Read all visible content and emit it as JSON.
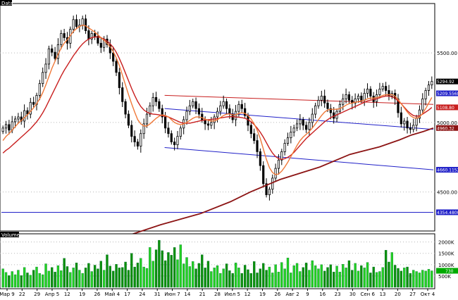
{
  "chart_data": {
    "type": "candlestick",
    "title": "Data",
    "price_panel": {
      "ylim": [
        4230,
        5830
      ],
      "ytick_labels": [
        {
          "value": 5500,
          "label": "5500.00"
        },
        {
          "value": 5000,
          "label": "5000.00"
        },
        {
          "value": 4500,
          "label": "4500.00"
        }
      ],
      "price_labels": [
        {
          "value": 5294.92,
          "label": "5294.92",
          "color": "#ffffff",
          "bg": "#000000"
        },
        {
          "value": 5209.5568,
          "label": "5209.5568",
          "color": "#ffffff",
          "bg": "#2020c8"
        },
        {
          "value": 5108.8,
          "label": "5108.80",
          "color": "#ffffff",
          "bg": "#c81e1e"
        },
        {
          "value": 4960.32,
          "label": "4960.32",
          "color": "#ffffff",
          "bg": "#8c1414"
        },
        {
          "value": 4660.1152,
          "label": "4660.1152",
          "color": "#ffffff",
          "bg": "#2020c8"
        },
        {
          "value": 4354.48,
          "label": "4354.4800",
          "color": "#ffffff",
          "bg": "#2020c8"
        }
      ],
      "closes": [
        4960,
        4985,
        4945,
        5005,
        5025,
        5040,
        5010,
        5085,
        5060,
        5145,
        5130,
        5195,
        5280,
        5360,
        5420,
        5530,
        5505,
        5460,
        5560,
        5640,
        5610,
        5570,
        5670,
        5740,
        5690,
        5700,
        5745,
        5660,
        5600,
        5640,
        5620,
        5570,
        5540,
        5600,
        5560,
        5500,
        5440,
        5360,
        5250,
        5150,
        5060,
        4980,
        4900,
        4860,
        4830,
        4920,
        4990,
        5060,
        5120,
        5180,
        5150,
        5100,
        5040,
        4960,
        4920,
        4860,
        4840,
        4900,
        4960,
        5020,
        5080,
        5120,
        5150,
        5100,
        5060,
        5020,
        4990,
        4980,
        5000,
        5040,
        5080,
        5120,
        5150,
        5100,
        5060,
        5020,
        5080,
        5130,
        5100,
        5050,
        4980,
        4920,
        4870,
        4790,
        4690,
        4560,
        4480,
        4520,
        4600,
        4670,
        4730,
        4790,
        4850,
        4890,
        4930,
        4960,
        4990,
        5020,
        4980,
        4950,
        5000,
        5060,
        5120,
        5160,
        5190,
        5140,
        5100,
        5070,
        5030,
        5080,
        5130,
        5170,
        5200,
        5160,
        5140,
        5170,
        5190,
        5160,
        5210,
        5240,
        5190,
        5150,
        5200,
        5240,
        5260,
        5230,
        5190,
        5210,
        5170,
        5070,
        4990,
        5010,
        4960,
        4950,
        4980,
        5030,
        5090,
        5170,
        5230,
        5270,
        5295
      ],
      "sma_fast": {
        "color": "#f07838",
        "values": [
          4870,
          4900,
          4920,
          4945,
          4970,
          4995,
          5015,
          5035,
          5055,
          5080,
          5105,
          5135,
          5170,
          5215,
          5270,
          5330,
          5390,
          5440,
          5490,
          5535,
          5570,
          5595,
          5625,
          5655,
          5675,
          5690,
          5700,
          5695,
          5680,
          5665,
          5650,
          5630,
          5610,
          5590,
          5570,
          5545,
          5510,
          5465,
          5410,
          5340,
          5270,
          5200,
          5135,
          5075,
          5020,
          4990,
          4975,
          4975,
          4990,
          5010,
          5030,
          5045,
          5055,
          5050,
          5040,
          5020,
          5000,
          4990,
          4985,
          4990,
          5000,
          5015,
          5030,
          5040,
          5040,
          5035,
          5025,
          5015,
          5010,
          5012,
          5020,
          5035,
          5050,
          5060,
          5062,
          5055,
          5055,
          5065,
          5070,
          5065,
          5050,
          5025,
          4990,
          4945,
          4885,
          4810,
          4735,
          4675,
          4640,
          4625,
          4630,
          4650,
          4680,
          4715,
          4755,
          4795,
          4835,
          4870,
          4895,
          4915,
          4935,
          4960,
          4990,
          5020,
          5050,
          5075,
          5090,
          5095,
          5095,
          5095,
          5100,
          5110,
          5125,
          5135,
          5140,
          5145,
          5150,
          5155,
          5160,
          5170,
          5175,
          5175,
          5180,
          5185,
          5195,
          5200,
          5200,
          5200,
          5190,
          5165,
          5135,
          5105,
          5075,
          5050,
          5035,
          5030,
          5040,
          5065,
          5100,
          5140,
          5180
        ]
      },
      "sma_slow": {
        "color": "#c81e1e",
        "values": [
          4780,
          4800,
          4815,
          4835,
          4855,
          4875,
          4895,
          4915,
          4935,
          4955,
          4980,
          5005,
          5035,
          5070,
          5110,
          5155,
          5200,
          5245,
          5290,
          5335,
          5375,
          5410,
          5445,
          5480,
          5510,
          5540,
          5565,
          5585,
          5600,
          5610,
          5615,
          5615,
          5610,
          5600,
          5585,
          5565,
          5540,
          5505,
          5460,
          5410,
          5355,
          5300,
          5245,
          5195,
          5150,
          5115,
          5090,
          5075,
          5065,
          5060,
          5058,
          5055,
          5050,
          5045,
          5040,
          5030,
          5020,
          5010,
          5000,
          4995,
          4995,
          4995,
          5000,
          5005,
          5010,
          5015,
          5018,
          5020,
          5022,
          5025,
          5028,
          5032,
          5036,
          5040,
          5042,
          5042,
          5040,
          5038,
          5035,
          5030,
          5020,
          5005,
          4985,
          4960,
          4930,
          4895,
          4855,
          4815,
          4780,
          4755,
          4740,
          4735,
          4740,
          4750,
          4765,
          4785,
          4810,
          4835,
          4860,
          4885,
          4905,
          4925,
          4945,
          4965,
          4985,
          5005,
          5020,
          5035,
          5045,
          5055,
          5065,
          5075,
          5085,
          5095,
          5105,
          5115,
          5125,
          5135,
          5145,
          5155,
          5160,
          5165,
          5170,
          5178,
          5185,
          5190,
          5190,
          5185,
          5175,
          5155,
          5135,
          5110,
          5085,
          5065,
          5050,
          5045,
          5048,
          5060,
          5075,
          5090,
          5108
        ]
      },
      "sma_long": {
        "color": "#8c1414",
        "points": [
          [
            60,
            4170
          ],
          [
            80,
            4265
          ],
          [
            100,
            4345
          ],
          [
            115,
            4430
          ],
          [
            125,
            4500
          ],
          [
            140,
            4590
          ],
          [
            160,
            4680
          ],
          [
            175,
            4770
          ],
          [
            190,
            4825
          ],
          [
            200,
            4875
          ],
          [
            206,
            4910
          ],
          [
            212,
            4935
          ],
          [
            217,
            4960
          ]
        ]
      },
      "channels": [
        {
          "name": "upper",
          "color": "#c81e1e",
          "points": [
            [
              82,
              5195
            ],
            [
              217,
              5130
            ]
          ]
        },
        {
          "name": "mid",
          "color": "#2020c8",
          "points": [
            [
              82,
              5100
            ],
            [
              217,
              4950
            ]
          ]
        },
        {
          "name": "lower",
          "color": "#2020c8",
          "points": [
            [
              82,
              4820
            ],
            [
              217,
              4660
            ]
          ]
        },
        {
          "name": "support",
          "color": "#2020c8",
          "points": [
            [
              0,
              4354
            ],
            [
              217,
              4354
            ]
          ]
        }
      ]
    },
    "volume_panel": {
      "title": "Volume",
      "ylim": [
        0,
        2300
      ],
      "ytick_labels": [
        {
          "value": 2000,
          "label": "2000K"
        },
        {
          "value": 1500,
          "label": "1500K"
        },
        {
          "value": 1000,
          "label": "1000K"
        },
        {
          "value": 500,
          "label": "500K"
        }
      ],
      "last_label": {
        "value": 730,
        "label": "730"
      },
      "values": [
        820,
        660,
        520,
        700,
        560,
        760,
        520,
        880,
        640,
        540,
        760,
        900,
        620,
        560,
        1040,
        720,
        880,
        680,
        960,
        740,
        1280,
        920,
        660,
        860,
        1080,
        760,
        620,
        860,
        1060,
        700,
        980,
        820,
        1160,
        760,
        1440,
        940,
        720,
        1020,
        860,
        880,
        1120,
        760,
        1500,
        900,
        1080,
        1280,
        900,
        840,
        1760,
        1160,
        1660,
        2080,
        1620,
        1180,
        1540,
        1420,
        1760,
        1220,
        1880,
        1040,
        1320,
        920,
        1140,
        820,
        1060,
        1440,
        860,
        1160,
        700,
        860,
        960,
        620,
        820,
        1040,
        740,
        620,
        1080,
        860,
        620,
        980,
        780,
        620,
        1140,
        640,
        820,
        1060,
        760,
        900,
        640,
        1000,
        680,
        1100,
        820,
        1300,
        640,
        960,
        1060,
        700,
        880,
        1080,
        760,
        1180,
        960,
        820,
        1000,
        720,
        880,
        1000,
        680,
        940,
        680,
        1020,
        860,
        1180,
        760,
        1060,
        720,
        960,
        860,
        1100,
        640,
        900,
        660,
        700,
        880,
        1640,
        1120,
        1540,
        980,
        840,
        720,
        860,
        900,
        620,
        760,
        700,
        640,
        760,
        720,
        800,
        730
      ]
    },
    "x_labels": [
      "Мар 9",
      "22",
      "29",
      "Апр 5",
      "12",
      "19",
      "26",
      "Май 4",
      "17",
      "24",
      "31",
      "Июн 7",
      "14",
      "21",
      "28",
      "Июл 5",
      "12",
      "19",
      "26",
      "Авг 2",
      "9",
      "16",
      "23",
      "30",
      "Сен 6",
      "13",
      "20",
      "27",
      "Окт 4"
    ]
  }
}
